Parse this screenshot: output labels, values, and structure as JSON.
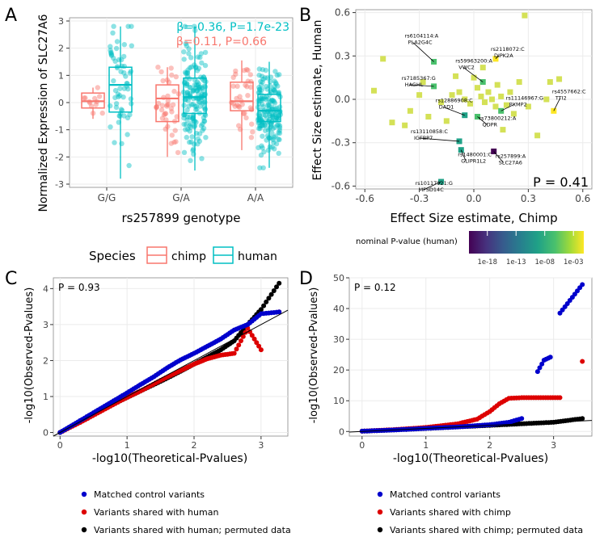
{
  "panel_labels": {
    "a": "A",
    "b": "B",
    "c": "C",
    "d": "D"
  },
  "legend_b": {
    "title": "nominal P-value (human)",
    "ticks": [
      "1e-18",
      "1e-13",
      "1e-08",
      "1e-03"
    ]
  },
  "chart_data": [
    {
      "id": "A",
      "type": "box",
      "ylabel": "Normalized Expression of SLC27A6",
      "xlabel": "rs257899 genotype",
      "categories": [
        "G/G",
        "G/A",
        "A/A"
      ],
      "ylim": [
        -3,
        3
      ],
      "yticks": [
        "-3",
        "-2",
        "-1",
        "0",
        "1",
        "2",
        "3"
      ],
      "legend_title": "Species",
      "series": [
        {
          "name": "chimp",
          "color": "#f8766d",
          "boxes": [
            {
              "q1": -0.2,
              "median": 0.05,
              "q3": 0.35,
              "wlo": -0.6,
              "whi": 0.55
            },
            {
              "q1": -0.7,
              "median": 0.15,
              "q3": 0.65,
              "wlo": -2.0,
              "whi": 1.3
            },
            {
              "q1": -0.3,
              "median": 0.05,
              "q3": 0.75,
              "wlo": -1.75,
              "whi": 1.55
            }
          ]
        },
        {
          "name": "human",
          "color": "#00bfc4",
          "boxes": [
            {
              "q1": -0.35,
              "median": 0.65,
              "q3": 1.3,
              "wlo": -2.8,
              "whi": 2.8
            },
            {
              "q1": -0.4,
              "median": 0.2,
              "q3": 0.9,
              "wlo": -2.5,
              "whi": 2.8
            },
            {
              "q1": -0.7,
              "median": -0.3,
              "q3": 0.3,
              "wlo": -2.4,
              "whi": 1.5
            }
          ]
        }
      ],
      "annotations": [
        {
          "text": "β=-0.36, P=1.7e-23",
          "color": "#00bfc4"
        },
        {
          "text": "β=0.11, P=0.66",
          "color": "#f8766d"
        }
      ]
    },
    {
      "id": "B",
      "type": "scatter",
      "xlabel": "Effect Size estimate, Chimp",
      "ylabel": "Effect Size estimate, Human",
      "xlim": [
        -0.65,
        0.65
      ],
      "ylim": [
        -0.62,
        0.62
      ],
      "xticks": [
        "-0.6",
        "-0.3",
        "0.0",
        "0.3",
        "0.6"
      ],
      "yticks": [
        "-0.6",
        "-0.3",
        "0.0",
        "0.3",
        "0.6"
      ],
      "annotation": "P = 0.41",
      "labeled_points": [
        {
          "label": "rs6104114:A",
          "gene": "PLA2G4C",
          "x": -0.22,
          "y": 0.26,
          "p": 1e-10
        },
        {
          "label": "rs2118072:C",
          "gene": "DIPK2A",
          "x": 0.12,
          "y": 0.28,
          "p": 0.001
        },
        {
          "label": "rs59963200:A",
          "gene": "VWC2",
          "x": 0.05,
          "y": 0.12,
          "p": 1e-09
        },
        {
          "label": "rs7185367:G",
          "gene": "HAGHL",
          "x": -0.22,
          "y": 0.09,
          "p": 1e-09
        },
        {
          "label": "rs11146967:G",
          "gene": "PXMP2",
          "x": 0.15,
          "y": -0.08,
          "p": 1e-10
        },
        {
          "label": "rs4557662:C",
          "gene": "TTI2",
          "x": 0.44,
          "y": -0.08,
          "p": 0.0001
        },
        {
          "label": "rs12886908:C",
          "gene": "DAD1",
          "x": -0.05,
          "y": -0.11,
          "p": 1e-11
        },
        {
          "label": "rs73800212:A",
          "gene": "QDPR",
          "x": 0.02,
          "y": -0.12,
          "p": 1e-09
        },
        {
          "label": "rs13110858:C",
          "gene": "IGFBP7",
          "x": -0.08,
          "y": -0.29,
          "p": 1e-12
        },
        {
          "label": "rs1480001:C",
          "gene": "GLIPR1L2",
          "x": -0.07,
          "y": -0.35,
          "p": 1e-11
        },
        {
          "label": "rs257899:A",
          "gene": "SLC27A6",
          "x": 0.11,
          "y": -0.36,
          "p": 1e-23
        },
        {
          "label": "rs10117921:G",
          "gene": "MFSD14C",
          "x": -0.18,
          "y": -0.57,
          "p": 1e-11
        }
      ],
      "other_points": [
        [
          -0.5,
          0.28
        ],
        [
          -0.55,
          0.06
        ],
        [
          -0.45,
          -0.16
        ],
        [
          -0.38,
          -0.18
        ],
        [
          -0.3,
          0.03
        ],
        [
          -0.28,
          0.12
        ],
        [
          -0.25,
          -0.12
        ],
        [
          -0.35,
          -0.08
        ],
        [
          -0.18,
          -0.02
        ],
        [
          -0.12,
          0.03
        ],
        [
          -0.08,
          0.05
        ],
        [
          -0.05,
          0.0
        ],
        [
          -0.02,
          -0.03
        ],
        [
          0.0,
          0.15
        ],
        [
          0.02,
          0.08
        ],
        [
          0.04,
          0.02
        ],
        [
          0.06,
          -0.02
        ],
        [
          0.08,
          0.05
        ],
        [
          0.1,
          0.0
        ],
        [
          0.12,
          -0.05
        ],
        [
          0.13,
          0.1
        ],
        [
          0.15,
          0.02
        ],
        [
          0.18,
          -0.04
        ],
        [
          0.2,
          0.05
        ],
        [
          0.25,
          0.12
        ],
        [
          0.28,
          0.58
        ],
        [
          0.35,
          -0.25
        ],
        [
          0.4,
          0.0
        ],
        [
          0.42,
          0.12
        ],
        [
          0.47,
          0.14
        ],
        [
          0.3,
          -0.05
        ],
        [
          -0.15,
          -0.15
        ],
        [
          0.16,
          -0.21
        ],
        [
          0.05,
          0.22
        ],
        [
          -0.1,
          0.16
        ],
        [
          0.22,
          -0.1
        ]
      ],
      "colorbar": {
        "title": "nominal P-value (human)",
        "ticks": [
          "1e-18",
          "1e-13",
          "1e-08",
          "1e-03"
        ]
      }
    },
    {
      "id": "C",
      "type": "qq",
      "xlabel": "-log10(Theoretical-Pvalues)",
      "ylabel": "-log10(Observed-Pvalues)",
      "xlim": [
        -0.1,
        3.4
      ],
      "ylim": [
        -0.1,
        4.3
      ],
      "xticks": [
        "0",
        "1",
        "2",
        "3"
      ],
      "yticks": [
        "0",
        "1",
        "2",
        "3",
        "4"
      ],
      "annotation": "P = 0.93",
      "series": [
        {
          "name": "Matched control variants",
          "color": "#0000cc",
          "points": [
            [
              0,
              0
            ],
            [
              0.2,
              0.22
            ],
            [
              0.4,
              0.44
            ],
            [
              0.6,
              0.66
            ],
            [
              0.8,
              0.88
            ],
            [
              1.0,
              1.1
            ],
            [
              1.2,
              1.33
            ],
            [
              1.4,
              1.55
            ],
            [
              1.6,
              1.8
            ],
            [
              1.8,
              2.02
            ],
            [
              2.0,
              2.2
            ],
            [
              2.2,
              2.4
            ],
            [
              2.4,
              2.6
            ],
            [
              2.6,
              2.85
            ],
            [
              2.8,
              3.0
            ],
            [
              3.0,
              3.3
            ],
            [
              3.27,
              3.35
            ]
          ]
        },
        {
          "name": "Variants shared with human",
          "color": "#dd0000",
          "points": [
            [
              0,
              0
            ],
            [
              0.3,
              0.28
            ],
            [
              0.6,
              0.58
            ],
            [
              0.9,
              0.88
            ],
            [
              1.2,
              1.15
            ],
            [
              1.5,
              1.45
            ],
            [
              1.8,
              1.72
            ],
            [
              2.0,
              1.9
            ],
            [
              2.2,
              2.05
            ],
            [
              2.4,
              2.15
            ],
            [
              2.6,
              2.2
            ],
            [
              2.8,
              2.9
            ],
            [
              3.0,
              2.3
            ],
            [
              3.27,
              3.35
            ]
          ]
        },
        {
          "name": "Variants shared with human; permuted data",
          "color": "#000000",
          "points": [
            [
              0,
              0
            ],
            [
              0.3,
              0.3
            ],
            [
              0.6,
              0.6
            ],
            [
              0.9,
              0.88
            ],
            [
              1.2,
              1.15
            ],
            [
              1.5,
              1.42
            ],
            [
              1.8,
              1.7
            ],
            [
              2.0,
              1.9
            ],
            [
              2.2,
              2.1
            ],
            [
              2.4,
              2.3
            ],
            [
              2.6,
              2.55
            ],
            [
              2.8,
              3.0
            ],
            [
              3.0,
              3.42
            ],
            [
              3.27,
              4.15
            ]
          ]
        }
      ],
      "reference_line": {
        "slope": 1.0,
        "intercept": 0.0
      }
    },
    {
      "id": "D",
      "type": "qq",
      "xlabel": "-log10(Theoretical-Pvalues)",
      "ylabel": "-log10(Observed-Pvalues)",
      "xlim": [
        -0.2,
        3.6
      ],
      "ylim": [
        -1.5,
        50
      ],
      "xticks": [
        "0",
        "1",
        "2",
        "3"
      ],
      "yticks": [
        "0",
        "10",
        "20",
        "30",
        "40",
        "50"
      ],
      "annotation": "P = 0.12",
      "series": [
        {
          "name": "Matched control variants",
          "color": "#0000cc",
          "points": [
            [
              0,
              0.1
            ],
            [
              0.5,
              0.5
            ],
            [
              1.0,
              1.0
            ],
            [
              1.5,
              1.5
            ],
            [
              2.0,
              2.2
            ],
            [
              2.3,
              3.0
            ],
            [
              2.5,
              4.2
            ],
            [
              2.75,
              19.5
            ],
            [
              2.85,
              23.2
            ],
            [
              2.95,
              24.2
            ],
            [
              3.1,
              38.5
            ],
            [
              3.45,
              47.8
            ]
          ]
        },
        {
          "name": "Variants shared with chimp",
          "color": "#dd0000",
          "points": [
            [
              0,
              0.1
            ],
            [
              0.5,
              0.6
            ],
            [
              1.0,
              1.3
            ],
            [
              1.5,
              2.5
            ],
            [
              1.8,
              4.0
            ],
            [
              2.0,
              6.5
            ],
            [
              2.15,
              9.0
            ],
            [
              2.3,
              10.8
            ],
            [
              2.5,
              11.0
            ],
            [
              2.8,
              11.0
            ],
            [
              3.1,
              11.0
            ],
            [
              3.45,
              22.8
            ]
          ]
        },
        {
          "name": "Variants shared with chimp; permuted data",
          "color": "#000000",
          "points": [
            [
              0,
              0.1
            ],
            [
              0.5,
              0.5
            ],
            [
              1.0,
              1.0
            ],
            [
              1.5,
              1.5
            ],
            [
              2.0,
              2.0
            ],
            [
              2.5,
              2.5
            ],
            [
              3.0,
              3.0
            ],
            [
              3.45,
              4.2
            ]
          ]
        }
      ],
      "reference_line": {
        "slope": 1.0,
        "intercept": 0.0
      }
    }
  ]
}
